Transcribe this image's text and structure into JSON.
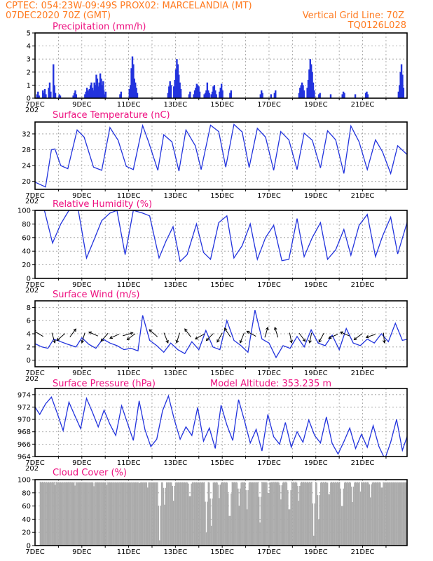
{
  "header": {
    "line1": "CPTEC:   054:23W-09:49S   PROX02: MARCELANDIA (MT)",
    "date": "07DEC2020 70Z (GMT)",
    "grid_note": "Vertical Grid Line: 70Z",
    "run_code": "TQ0126L028"
  },
  "colors": {
    "header": "#ff7a1f",
    "title": "#ee1180",
    "series": "#2233dd",
    "cloud": "#aaaaaa",
    "grid": "#9a9a9a"
  },
  "x_axis": {
    "labels": [
      "7DEC",
      "9DEC",
      "11DEC",
      "13DEC",
      "15DEC",
      "17DEC",
      "19DEC",
      "21DEC"
    ],
    "year_fragment": "202"
  },
  "chart_data": [
    {
      "id": "precip",
      "type": "bar",
      "title": "Precipitation (mm/h)",
      "ylim": [
        0,
        5
      ],
      "yticks": [
        0,
        1,
        2,
        3,
        4,
        5
      ],
      "grid": true,
      "x_range_days": [
        7,
        22.9
      ],
      "events": [
        {
          "day": 7.05,
          "values": [
            0.3,
            0.5,
            0.2
          ]
        },
        {
          "day": 7.3,
          "values": [
            0.6,
            0.4,
            0.7,
            0.3
          ]
        },
        {
          "day": 7.55,
          "values": [
            0.8,
            1.2,
            0.5
          ]
        },
        {
          "day": 7.75,
          "values": [
            2.6,
            1.0,
            0.4
          ]
        },
        {
          "day": 8.0,
          "values": [
            0.3,
            0.2
          ]
        },
        {
          "day": 8.6,
          "values": [
            0.2,
            0.4,
            0.6,
            0.3
          ]
        },
        {
          "day": 9.1,
          "values": [
            0.3,
            0.5,
            0.8,
            0.6
          ]
        },
        {
          "day": 9.25,
          "values": [
            0.4,
            0.7,
            1.0,
            1.2,
            0.8,
            0.6,
            0.5,
            0.7
          ]
        },
        {
          "day": 9.5,
          "values": [
            1.2,
            1.0,
            1.8,
            1.5,
            0.9,
            1.2,
            1.9,
            1.5,
            1.0,
            1.3
          ]
        },
        {
          "day": 9.9,
          "values": [
            0.6,
            0.3,
            0.5
          ]
        },
        {
          "day": 10.6,
          "values": [
            0.3,
            0.5
          ]
        },
        {
          "day": 11.0,
          "values": [
            0.7,
            1.0,
            2.3,
            3.2,
            2.6,
            1.5,
            1.2,
            0.8,
            0.4
          ]
        },
        {
          "day": 12.65,
          "values": [
            0.4,
            0.9,
            1.3,
            1.0
          ]
        },
        {
          "day": 12.9,
          "values": [
            0.9,
            1.4,
            2.2,
            3.0,
            2.6,
            1.8,
            1.2,
            0.7
          ]
        },
        {
          "day": 13.15,
          "values": [
            0.2,
            0.3
          ]
        },
        {
          "day": 13.55,
          "values": [
            0.3,
            0.5
          ]
        },
        {
          "day": 13.75,
          "values": [
            0.3,
            0.6,
            0.8,
            1.1,
            1.0,
            0.9,
            0.5
          ]
        },
        {
          "day": 14.2,
          "values": [
            0.3,
            0.4,
            0.6,
            1.2,
            0.6,
            0.4
          ]
        },
        {
          "day": 14.5,
          "values": [
            0.3,
            0.5,
            0.9,
            1.0,
            0.6,
            0.3
          ]
        },
        {
          "day": 14.85,
          "values": [
            0.5,
            0.8,
            1.1,
            0.6
          ]
        },
        {
          "day": 15.3,
          "values": [
            0.4,
            0.6
          ]
        },
        {
          "day": 16.6,
          "values": [
            0.3,
            0.6,
            0.4
          ]
        },
        {
          "day": 17.05,
          "values": [
            0.3
          ]
        },
        {
          "day": 17.2,
          "values": [
            0.4,
            0.6
          ]
        },
        {
          "day": 18.25,
          "values": [
            0.4,
            0.8,
            1.0,
            1.2,
            1.0,
            0.6
          ]
        },
        {
          "day": 18.6,
          "values": [
            0.8,
            1.4,
            2.2,
            3.0,
            2.6,
            2.0,
            1.2,
            0.6
          ]
        },
        {
          "day": 19.1,
          "values": [
            0.3,
            0.4
          ]
        },
        {
          "day": 19.6,
          "values": [
            0.3
          ]
        },
        {
          "day": 20.1,
          "values": [
            0.3,
            0.5,
            0.4
          ]
        },
        {
          "day": 20.65,
          "values": [
            0.3
          ]
        },
        {
          "day": 21.1,
          "values": [
            0.4,
            0.5,
            0.3
          ]
        },
        {
          "day": 22.5,
          "values": [
            0.5,
            1.0,
            2.0,
            2.6,
            1.8,
            0.8
          ]
        }
      ]
    },
    {
      "id": "temperature",
      "type": "line",
      "title": "Surface Temperature (nC)",
      "ylim": [
        18,
        35
      ],
      "yticks": [
        20,
        24,
        28,
        32
      ],
      "grid": true,
      "x": [
        7.0,
        7.45,
        7.7,
        7.85,
        8.1,
        8.4,
        8.8,
        9.1,
        9.5,
        9.85,
        10.2,
        10.55,
        10.9,
        11.2,
        11.6,
        11.85,
        12.25,
        12.5,
        12.85,
        13.15,
        13.45,
        13.85,
        14.1,
        14.5,
        14.85,
        15.15,
        15.5,
        15.85,
        16.15,
        16.5,
        16.85,
        17.2,
        17.5,
        17.85,
        18.2,
        18.5,
        18.85,
        19.2,
        19.5,
        19.85,
        20.2,
        20.5,
        20.85,
        21.2,
        21.55,
        21.85,
        22.2,
        22.5,
        22.95
      ],
      "values": [
        19.8,
        18.6,
        28.0,
        28.2,
        24.0,
        23.2,
        33.0,
        31.2,
        23.6,
        22.8,
        33.6,
        30.4,
        23.8,
        23.0,
        34.1,
        30.0,
        22.8,
        31.8,
        30.0,
        22.6,
        33.0,
        29.0,
        23.0,
        34.2,
        32.6,
        23.6,
        34.4,
        32.5,
        23.5,
        33.4,
        31.2,
        22.8,
        32.6,
        30.5,
        23.0,
        32.2,
        30.4,
        23.4,
        32.8,
        30.5,
        22.0,
        34.0,
        30.0,
        23.0,
        30.5,
        27.5,
        22.0,
        29.0,
        26.5
      ]
    },
    {
      "id": "humidity",
      "type": "line",
      "title": "Relative Humidity (%)",
      "ylim": [
        0,
        100
      ],
      "yticks": [
        0,
        20,
        40,
        60,
        80,
        100
      ],
      "grid": true,
      "x": [
        7.0,
        7.4,
        7.75,
        8.1,
        8.45,
        8.85,
        9.2,
        9.5,
        9.85,
        10.2,
        10.5,
        10.85,
        11.2,
        11.6,
        11.9,
        12.3,
        12.6,
        12.9,
        13.2,
        13.5,
        13.9,
        14.2,
        14.5,
        14.85,
        15.2,
        15.5,
        15.85,
        16.2,
        16.5,
        16.85,
        17.2,
        17.55,
        17.85,
        18.2,
        18.5,
        18.85,
        19.2,
        19.5,
        19.85,
        20.2,
        20.5,
        20.85,
        21.2,
        21.55,
        21.85,
        22.2,
        22.5,
        22.95
      ],
      "values": [
        100,
        100,
        52,
        80,
        100,
        100,
        30,
        55,
        85,
        96,
        100,
        35,
        100,
        96,
        92,
        30,
        55,
        76,
        25,
        35,
        80,
        38,
        28,
        82,
        92,
        30,
        48,
        80,
        28,
        60,
        78,
        26,
        28,
        88,
        32,
        60,
        82,
        28,
        42,
        72,
        34,
        78,
        94,
        32,
        62,
        90,
        36,
        88
      ]
    },
    {
      "id": "wind",
      "type": "line",
      "title": "Surface Wind (m/s)",
      "ylim": [
        -1,
        9
      ],
      "yticks": [
        0,
        2,
        4,
        6,
        8
      ],
      "grid": true,
      "x": [
        7.0,
        7.3,
        7.55,
        7.8,
        8.1,
        8.4,
        8.75,
        9.0,
        9.3,
        9.6,
        9.9,
        10.2,
        10.5,
        10.8,
        11.1,
        11.4,
        11.6,
        11.9,
        12.2,
        12.5,
        12.8,
        13.1,
        13.4,
        13.7,
        14.0,
        14.3,
        14.6,
        14.9,
        15.2,
        15.5,
        15.8,
        16.1,
        16.4,
        16.7,
        17.0,
        17.3,
        17.6,
        17.9,
        18.2,
        18.5,
        18.8,
        19.1,
        19.4,
        19.7,
        20.0,
        20.3,
        20.6,
        20.9,
        21.2,
        21.5,
        21.8,
        22.1,
        22.4,
        22.7,
        22.95
      ],
      "values": [
        2.5,
        2.0,
        1.8,
        3.2,
        2.8,
        2.4,
        2.0,
        3.4,
        2.4,
        1.8,
        3.2,
        2.6,
        2.2,
        1.6,
        1.8,
        1.4,
        6.8,
        3.0,
        2.2,
        1.2,
        2.6,
        1.6,
        1.0,
        2.8,
        1.6,
        4.5,
        2.0,
        1.6,
        6.0,
        3.0,
        2.2,
        1.2,
        7.6,
        3.2,
        2.6,
        0.4,
        2.2,
        1.8,
        3.6,
        2.0,
        4.6,
        2.6,
        2.2,
        3.8,
        1.6,
        4.8,
        2.6,
        2.2,
        3.2,
        2.6,
        4.0,
        2.8,
        5.6,
        3.0,
        3.2
      ],
      "vectors": [
        {
          "day": 7.25,
          "u": -1,
          "v": 0.6
        },
        {
          "day": 7.75,
          "u": 0.3,
          "v": -1
        },
        {
          "day": 8.2,
          "u": -0.8,
          "v": -0.7
        },
        {
          "day": 8.55,
          "u": 0.6,
          "v": 0.8
        },
        {
          "day": 9.1,
          "u": -0.3,
          "v": -1
        },
        {
          "day": 9.6,
          "u": -0.9,
          "v": 0.4
        },
        {
          "day": 10.05,
          "u": -0.7,
          "v": -0.8
        },
        {
          "day": 10.5,
          "u": -0.9,
          "v": -0.4
        },
        {
          "day": 10.85,
          "u": 1,
          "v": 0.3
        },
        {
          "day": 11.2,
          "u": -0.8,
          "v": -0.6
        },
        {
          "day": 12.15,
          "u": -0.8,
          "v": 0.7
        },
        {
          "day": 12.55,
          "u": 0.4,
          "v": -1
        },
        {
          "day": 13.15,
          "u": -0.3,
          "v": -1
        },
        {
          "day": 13.6,
          "u": -0.6,
          "v": 0.8
        },
        {
          "day": 14.15,
          "u": -0.9,
          "v": -0.5
        },
        {
          "day": 14.55,
          "u": -0.7,
          "v": -0.7
        },
        {
          "day": 14.95,
          "u": -0.5,
          "v": -0.9
        },
        {
          "day": 15.3,
          "u": -0.6,
          "v": 0.9
        },
        {
          "day": 15.9,
          "u": -0.4,
          "v": -1
        },
        {
          "day": 16.35,
          "u": -0.9,
          "v": 0.5
        },
        {
          "day": 16.85,
          "u": 0.3,
          "v": 1
        },
        {
          "day": 17.35,
          "u": -0.3,
          "v": 1
        },
        {
          "day": 17.9,
          "u": 0.2,
          "v": -1
        },
        {
          "day": 18.35,
          "u": 0.6,
          "v": -0.8
        },
        {
          "day": 18.8,
          "u": -0.2,
          "v": -1
        },
        {
          "day": 19.3,
          "u": -0.5,
          "v": -0.9
        },
        {
          "day": 19.85,
          "u": -0.9,
          "v": -0.4
        },
        {
          "day": 20.35,
          "u": -0.9,
          "v": 0.4
        },
        {
          "day": 20.9,
          "u": -0.8,
          "v": -0.6
        },
        {
          "day": 21.45,
          "u": -0.9,
          "v": -0.3
        },
        {
          "day": 21.9,
          "u": 0.1,
          "v": -1
        }
      ]
    },
    {
      "id": "pressure",
      "type": "line",
      "title": "Surface Pressure (hPa)",
      "model_altitude": "Model Altitude: 353.235 m",
      "ylim": [
        964,
        975
      ],
      "yticks": [
        964,
        966,
        968,
        970,
        972,
        974
      ],
      "grid": true,
      "x": [
        7.0,
        7.2,
        7.45,
        7.7,
        7.95,
        8.2,
        8.45,
        8.7,
        8.95,
        9.2,
        9.45,
        9.7,
        9.95,
        10.2,
        10.45,
        10.7,
        10.95,
        11.2,
        11.45,
        11.7,
        11.95,
        12.2,
        12.45,
        12.7,
        12.95,
        13.2,
        13.45,
        13.7,
        13.95,
        14.2,
        14.45,
        14.7,
        14.95,
        15.2,
        15.45,
        15.7,
        15.95,
        16.2,
        16.45,
        16.7,
        16.95,
        17.2,
        17.45,
        17.7,
        17.95,
        18.2,
        18.45,
        18.7,
        18.95,
        19.2,
        19.45,
        19.7,
        19.95,
        20.2,
        20.45,
        20.7,
        20.95,
        21.2,
        21.45,
        21.7,
        21.95,
        22.2,
        22.45,
        22.7,
        22.95
      ],
      "values": [
        972.0,
        970.8,
        972.5,
        973.6,
        971.0,
        968.2,
        972.8,
        970.6,
        968.5,
        973.4,
        971.2,
        968.8,
        971.5,
        969.2,
        967.4,
        972.2,
        969.4,
        966.6,
        973.0,
        968.3,
        965.6,
        966.8,
        971.4,
        973.8,
        970.0,
        966.8,
        968.8,
        967.4,
        971.9,
        966.5,
        968.6,
        965.3,
        972.3,
        969.1,
        966.6,
        973.2,
        969.8,
        966.2,
        968.4,
        964.9,
        970.8,
        967.2,
        966.0,
        969.5,
        965.5,
        968.0,
        966.3,
        969.9,
        967.4,
        966.2,
        970.4,
        966.1,
        964.4,
        966.4,
        968.6,
        965.3,
        967.6,
        965.5,
        969.0,
        965.6,
        963.6,
        966.3,
        970.0,
        965.0,
        967.8
      ]
    },
    {
      "id": "cloud",
      "type": "bar",
      "title": "Cloud Cover (%)",
      "ylim": [
        0,
        100
      ],
      "yticks": [
        0,
        20,
        40,
        60,
        80,
        100
      ],
      "grid": true,
      "baseline": 97,
      "dips": [
        {
          "day": 7.85,
          "value": 92
        },
        {
          "day": 8.7,
          "value": 91
        },
        {
          "day": 9.5,
          "value": 90
        },
        {
          "day": 10.05,
          "value": 92
        },
        {
          "day": 11.45,
          "value": 95
        },
        {
          "day": 11.8,
          "value": 88
        },
        {
          "day": 12.3,
          "value": 8
        },
        {
          "day": 12.5,
          "value": 62
        },
        {
          "day": 12.9,
          "value": 68
        },
        {
          "day": 13.6,
          "value": 75
        },
        {
          "day": 14.3,
          "value": 20
        },
        {
          "day": 14.5,
          "value": 30
        },
        {
          "day": 14.85,
          "value": 72
        },
        {
          "day": 15.3,
          "value": 45
        },
        {
          "day": 15.7,
          "value": 60
        },
        {
          "day": 16.05,
          "value": 55
        },
        {
          "day": 16.6,
          "value": 35
        },
        {
          "day": 16.95,
          "value": 80
        },
        {
          "day": 17.5,
          "value": 70
        },
        {
          "day": 17.85,
          "value": 55
        },
        {
          "day": 18.25,
          "value": 68
        },
        {
          "day": 18.9,
          "value": 15
        },
        {
          "day": 19.1,
          "value": 40
        },
        {
          "day": 19.55,
          "value": 78
        },
        {
          "day": 20.1,
          "value": 60
        },
        {
          "day": 20.55,
          "value": 66
        },
        {
          "day": 20.9,
          "value": 82
        },
        {
          "day": 21.3,
          "value": 73
        },
        {
          "day": 21.8,
          "value": 88
        }
      ]
    }
  ]
}
